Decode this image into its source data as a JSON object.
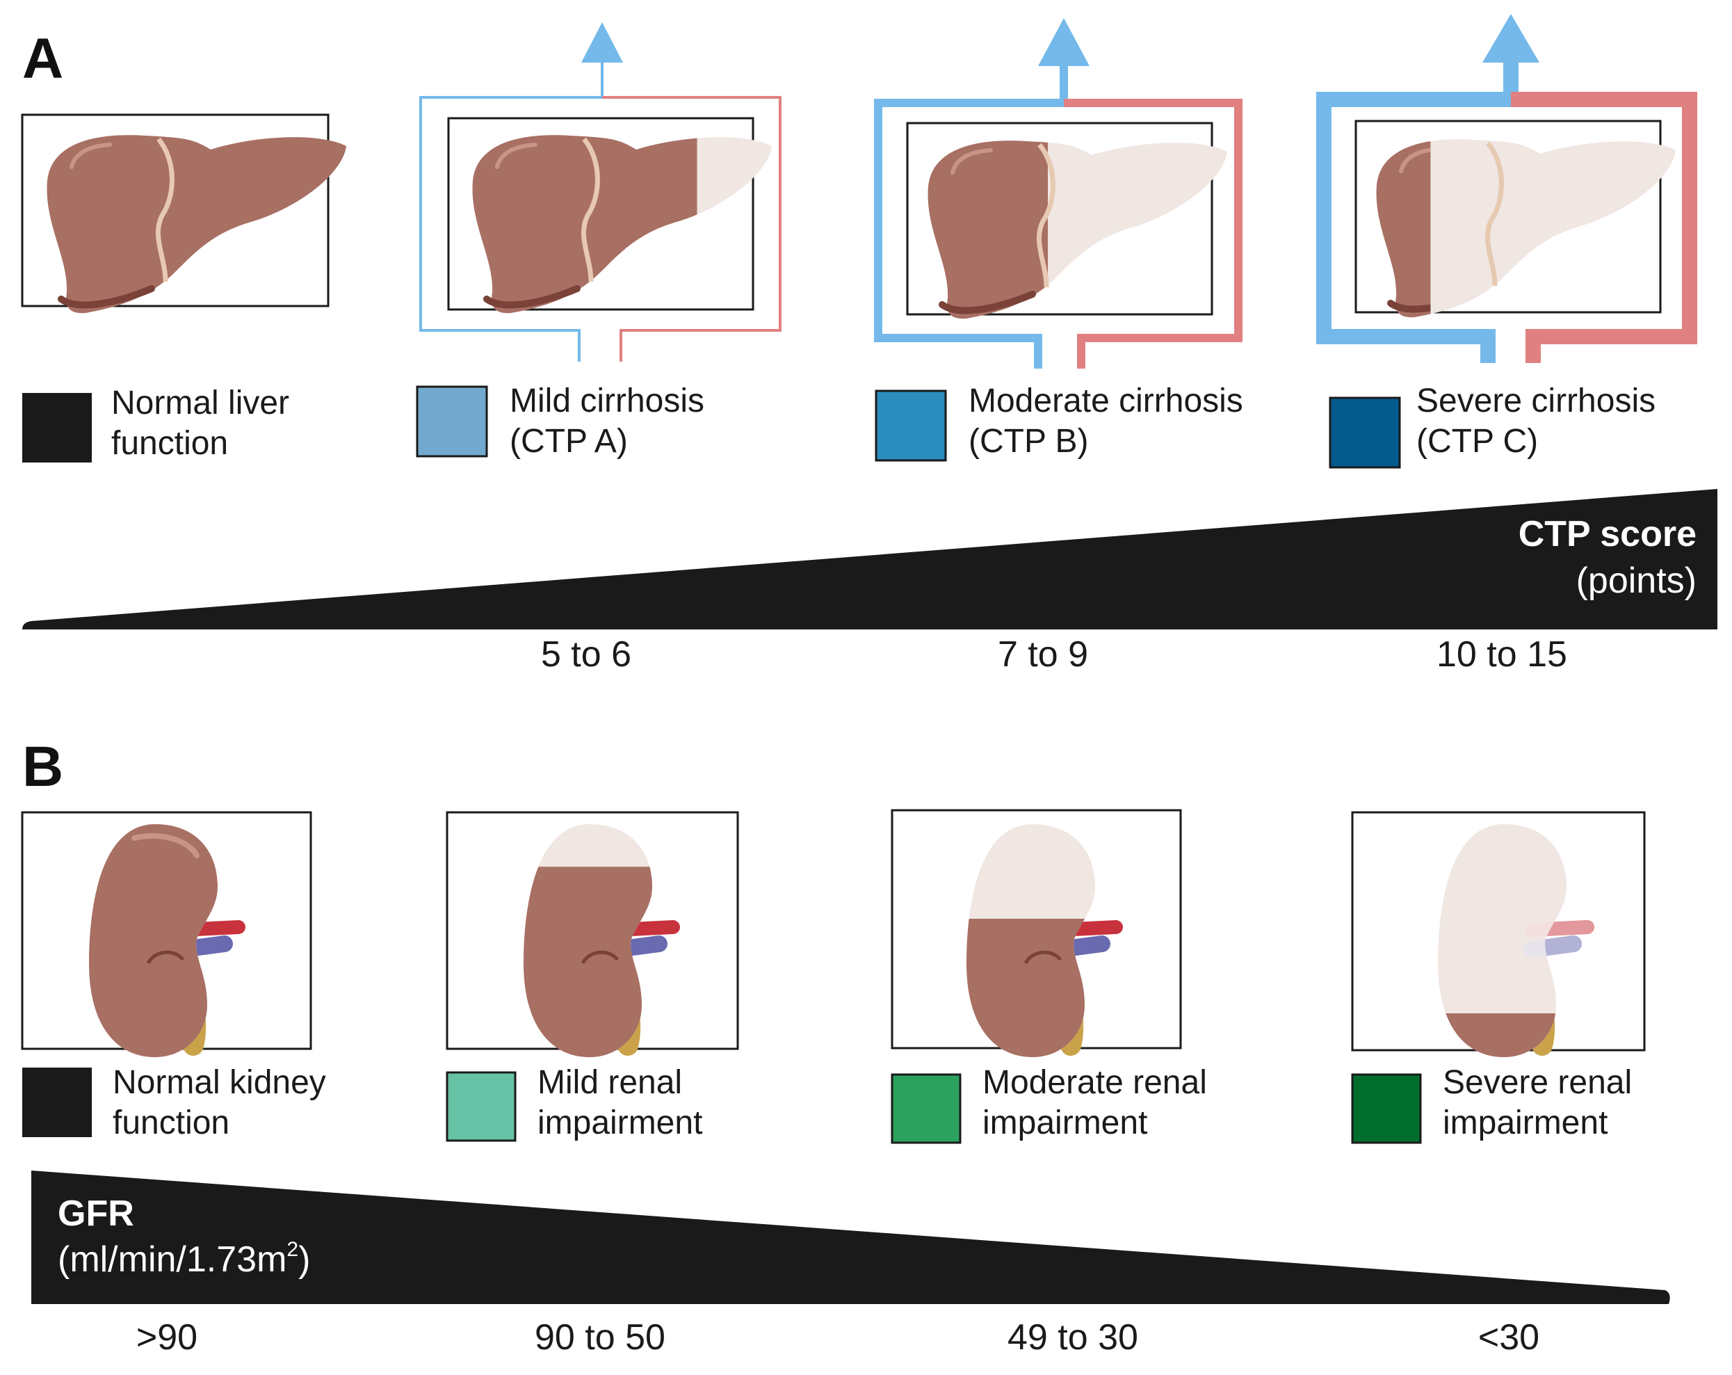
{
  "panel_a": {
    "letter": "A",
    "stages": [
      {
        "label_line1": "Normal liver",
        "label_line2": "function",
        "swatch": "#1a1a1a",
        "damage_fraction": 0.0,
        "shunt_level": 0
      },
      {
        "label_line1": "Mild cirrhosis",
        "label_line2": "(CTP A)",
        "swatch": "#74a9cf",
        "damage_fraction": 0.25,
        "shunt_level": 1
      },
      {
        "label_line1": "Moderate cirrhosis",
        "label_line2": "(CTP B)",
        "swatch": "#2b8cbe",
        "damage_fraction": 0.6,
        "shunt_level": 2
      },
      {
        "label_line1": "Severe cirrhosis",
        "label_line2": "(CTP C)",
        "swatch": "#045a8d",
        "damage_fraction": 0.82,
        "shunt_level": 3
      }
    ],
    "scale": {
      "title": "CTP score",
      "subtitle": "(points)",
      "ticks": [
        "5 to 6",
        "7 to 9",
        "10 to 15"
      ]
    }
  },
  "panel_b": {
    "letter": "B",
    "stages": [
      {
        "label_line1": "Normal kidney",
        "label_line2": "function",
        "swatch": "#1a1a1a",
        "damage_fraction": 0.0
      },
      {
        "label_line1": "Mild renal",
        "label_line2": "impairment",
        "swatch": "#66c2a4",
        "damage_fraction": 0.18
      },
      {
        "label_line1": "Moderate renal",
        "label_line2": "impairment",
        "swatch": "#2ca25f",
        "damage_fraction": 0.4
      },
      {
        "label_line1": "Severe renal",
        "label_line2": "impairment",
        "swatch": "#006d2c",
        "damage_fraction": 0.8
      }
    ],
    "scale": {
      "title": "GFR",
      "subtitle_main": "(ml/min/1.73m",
      "subtitle_sup": "2",
      "subtitle_end": ")",
      "ticks": [
        ">90",
        "90 to 50",
        "49 to 30",
        "<30"
      ]
    }
  },
  "colors": {
    "organ": "#a86f63",
    "organ_dark": "#7a4238",
    "organ_faded": "#f0e6e2",
    "shunt_blue": "#74b9ea",
    "shunt_red": "#e08080",
    "ureter": "#c9a24a",
    "artery": "#c8323c",
    "vein": "#6a6ab0",
    "wedge": "#1a1a1a"
  }
}
